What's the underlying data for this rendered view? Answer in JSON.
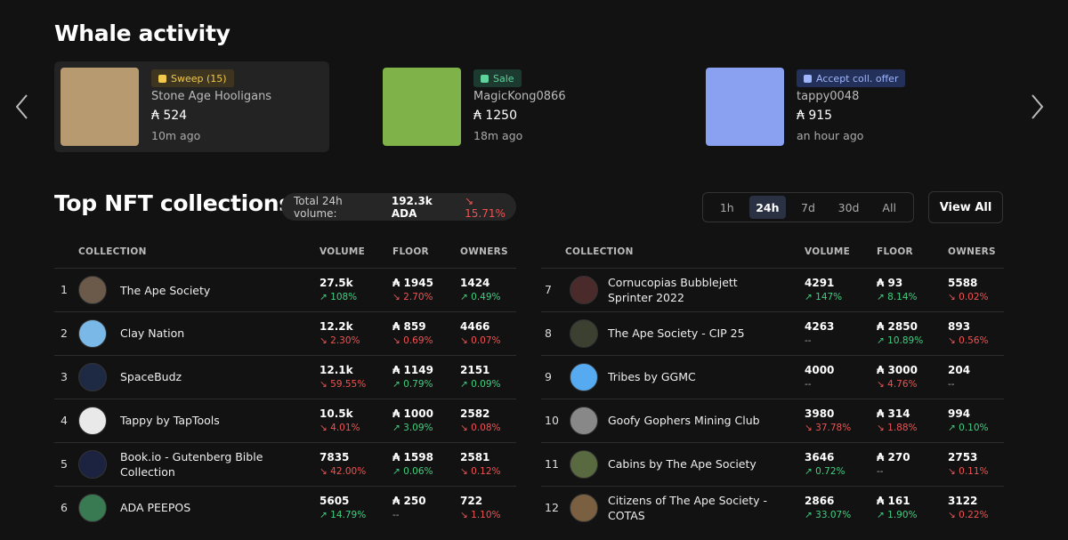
{
  "whale": {
    "title": "Whale activity",
    "cards": [
      {
        "tag": "Sweep (15)",
        "name": "Stone Age Hooligans",
        "price": "₳ 524",
        "time": "10m ago"
      },
      {
        "tag": "Sale",
        "name": "MagicKong0866",
        "price": "₳ 1250",
        "time": "18m ago"
      },
      {
        "tag": "Accept coll. offer",
        "name": "tappy0048",
        "price": "₳ 915",
        "time": "an hour ago"
      }
    ]
  },
  "top": {
    "title": "Top NFT collections",
    "summary": {
      "label": "Total 24h volume:",
      "value": "192.3k ADA",
      "change": "↘ 15.71%"
    },
    "tabs": [
      "1h",
      "24h",
      "7d",
      "30d",
      "All"
    ],
    "active_tab": 1,
    "button": "View All",
    "tables": [
      {
        "headers": [
          "COLLECTION",
          "VOLUME",
          "FLOOR",
          "OWNERS"
        ],
        "rows": [
          [
            "1",
            "The Ape Society",
            "27.5k",
            "↗ 108%",
            "₳ 1945",
            "↘ 2.70%",
            "1424",
            "↗ 0.49%"
          ],
          [
            "2",
            "Clay Nation",
            "12.2k",
            "↘ 2.30%",
            "₳ 859",
            "↘ 0.69%",
            "4466",
            "↘ 0.07%"
          ],
          [
            "3",
            "SpaceBudz",
            "12.1k",
            "↘ 59.55%",
            "₳ 1149",
            "↗ 0.79%",
            "2151",
            "↗ 0.09%"
          ],
          [
            "4",
            "Tappy by TapTools",
            "10.5k",
            "↘ 4.01%",
            "₳ 1000",
            "↗ 3.09%",
            "2582",
            "↘ 0.08%"
          ],
          [
            "5",
            "Book.io - Gutenberg Bible Collection",
            "7835",
            "↘ 42.00%",
            "₳ 1598",
            "↗ 0.06%",
            "2581",
            "↘ 0.12%"
          ],
          [
            "6",
            "ADA PEEPOS",
            "5605",
            "↗ 14.79%",
            "₳ 250",
            "--",
            "722",
            "↘ 1.10%"
          ]
        ]
      },
      {
        "headers": [
          "COLLECTION",
          "VOLUME",
          "FLOOR",
          "OWNERS"
        ],
        "rows": [
          [
            "7",
            "Cornucopias Bubblejett Sprinter 2022",
            "4291",
            "↗ 147%",
            "₳ 93",
            "↗ 8.14%",
            "5588",
            "↘ 0.02%"
          ],
          [
            "8",
            "The Ape Society - CIP 25",
            "4263",
            "--",
            "₳ 2850",
            "↗ 10.89%",
            "893",
            "↘ 0.56%"
          ],
          [
            "9",
            "Tribes by GGMC",
            "4000",
            "--",
            "₳ 3000",
            "↘ 4.76%",
            "204",
            "--"
          ],
          [
            "10",
            "Goofy Gophers Mining Club",
            "3980",
            "↘ 37.78%",
            "₳ 314",
            "↘ 1.88%",
            "994",
            "↗ 0.10%"
          ],
          [
            "11",
            "Cabins by The Ape Society",
            "3646",
            "↗ 0.72%",
            "₳ 270",
            "--",
            "2753",
            "↘ 0.11%"
          ],
          [
            "12",
            "Citizens of The Ape Society - COTAS",
            "2866",
            "↗ 33.07%",
            "₳ 161",
            "↗ 1.90%",
            "3122",
            "↘ 0.22%"
          ]
        ]
      }
    ]
  }
}
